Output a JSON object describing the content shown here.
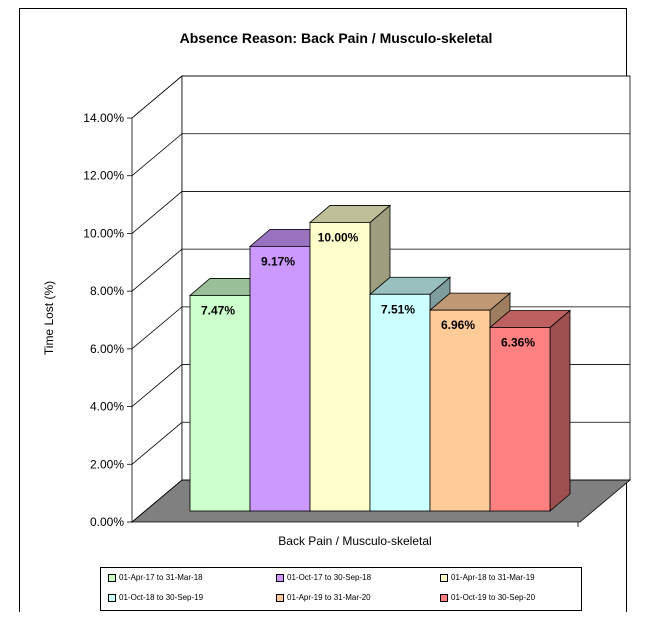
{
  "chart_data": {
    "type": "bar",
    "title": "Absence Reason: Back Pain / Musculo-skeletal",
    "xlabel": "Back Pain / Musculo-skeletal",
    "ylabel": "Time Lost (%)",
    "ylim": [
      0,
      14
    ],
    "yticks": [
      "0.00%",
      "2.00%",
      "4.00%",
      "6.00%",
      "8.00%",
      "10.00%",
      "12.00%",
      "14.00%"
    ],
    "grid": true,
    "three_d": true,
    "legend_position": "bottom",
    "categories": [
      "Back Pain / Musculo-skeletal"
    ],
    "series": [
      {
        "name": "01-Apr-17 to 31-Mar-18",
        "values": [
          7.47
        ],
        "label": "7.47%",
        "color": "#ccffcc"
      },
      {
        "name": "01-Oct-17 to 30-Sep-18",
        "values": [
          9.17
        ],
        "label": "9.17%",
        "color": "#cc99ff"
      },
      {
        "name": "01-Apr-18 to 31-Mar-19",
        "values": [
          10.0
        ],
        "label": "10.00%",
        "color": "#ffffcc"
      },
      {
        "name": "01-Oct-18 to 30-Sep-19",
        "values": [
          7.51
        ],
        "label": "7.51%",
        "color": "#ccffff"
      },
      {
        "name": "01-Apr-19 to 31-Mar-20",
        "values": [
          6.96
        ],
        "label": "6.96%",
        "color": "#ffcc99"
      },
      {
        "name": "01-Oct-19 to 30-Sep-20",
        "values": [
          6.36
        ],
        "label": "6.36%",
        "color": "#ff8080"
      }
    ]
  }
}
